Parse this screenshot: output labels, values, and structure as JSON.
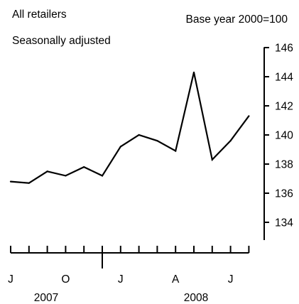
{
  "chart_data": {
    "type": "line",
    "title": "All retailers",
    "subtitle": "Seasonally adjusted",
    "base_note": "Base year 2000=100",
    "xlabel": "",
    "ylabel": "",
    "ylim": [
      133,
      146.5
    ],
    "y_ticks": [
      134,
      136,
      138,
      140,
      142,
      144,
      146
    ],
    "y_tick_labels": [
      "134",
      "136",
      "138",
      "140",
      "142",
      "144",
      "146"
    ],
    "y_axis_side": "right",
    "grid": false,
    "legend": "none",
    "x": [
      "Jul 2007",
      "Aug 2007",
      "Sep 2007",
      "Oct 2007",
      "Nov 2007",
      "Dec 2007",
      "Jan 2008",
      "Feb 2008",
      "Mar 2008",
      "Apr 2008",
      "May 2008",
      "Jun 2008",
      "Jul 2008",
      "Aug 2008"
    ],
    "month_letters": [
      "J",
      "",
      "",
      "O",
      "",
      "",
      "J",
      "",
      "",
      "A",
      "",
      "",
      "J",
      ""
    ],
    "years": [
      {
        "label": "2007",
        "start_index": 0,
        "end_index": 5
      },
      {
        "label": "2008",
        "start_index": 6,
        "end_index": 13
      }
    ],
    "series": [
      {
        "name": "",
        "color": "#000000",
        "values": [
          136.8,
          136.7,
          137.5,
          137.2,
          137.8,
          137.2,
          139.2,
          140.0,
          139.6,
          138.9,
          144.3,
          138.3,
          139.6,
          141.3
        ]
      }
    ]
  }
}
